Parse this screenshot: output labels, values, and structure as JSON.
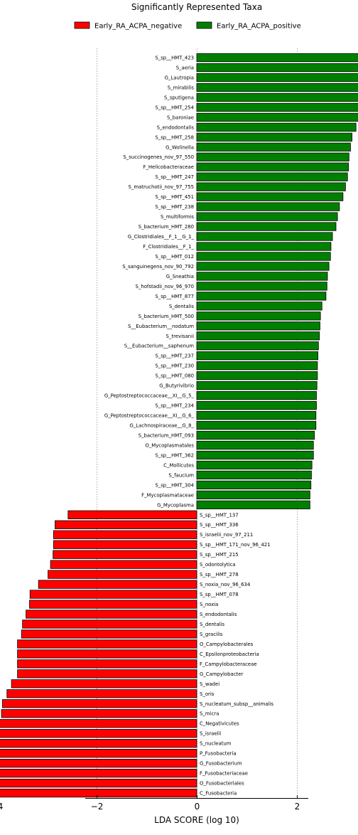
{
  "chart_data": {
    "type": "bar",
    "orientation": "horizontal",
    "title": "Significantly Represented Taxa",
    "xlabel": "LDA SCORE (log 10)",
    "ylabel": "",
    "xlim": [
      -4.5,
      4.3
    ],
    "xticks": [
      -4,
      -2,
      0,
      2,
      4
    ],
    "xtick_labels": [
      "−4",
      "−2",
      "0",
      "2",
      "4"
    ],
    "grid": "vertical dotted lines at x ticks",
    "legend_position": "top",
    "series": [
      {
        "name": "Early_RA_ACPA_negative",
        "color": "#ff0000"
      },
      {
        "name": "Early_RA_ACPA_positive",
        "color": "#008000"
      }
    ],
    "bars": [
      {
        "label": "S_sp__HMT_423",
        "value": 4.25,
        "group": 1
      },
      {
        "label": "S_aeria",
        "value": 4.12,
        "group": 1
      },
      {
        "label": "G_Lautropia",
        "value": 4.0,
        "group": 1
      },
      {
        "label": "S_mirabilis",
        "value": 3.99,
        "group": 1
      },
      {
        "label": "S_sputigena",
        "value": 3.98,
        "group": 1
      },
      {
        "label": "S_sp__HMT_254",
        "value": 3.33,
        "group": 1
      },
      {
        "label": "S_baroniae",
        "value": 3.23,
        "group": 1
      },
      {
        "label": "S_endodontalis",
        "value": 3.18,
        "group": 1
      },
      {
        "label": "S_sp__HMT_258",
        "value": 3.1,
        "group": 1
      },
      {
        "label": "G_Wolinella",
        "value": 3.07,
        "group": 1
      },
      {
        "label": "S_succinogenes_nov_97_550",
        "value": 3.04,
        "group": 1
      },
      {
        "label": "F_Helicobacteraceae",
        "value": 3.03,
        "group": 1
      },
      {
        "label": "S_sp__HMT_247",
        "value": 3.01,
        "group": 1
      },
      {
        "label": "S_matruchotii_nov_97_755",
        "value": 2.97,
        "group": 1
      },
      {
        "label": "S_sp__HMT_451",
        "value": 2.92,
        "group": 1
      },
      {
        "label": "S_sp__HMT_238",
        "value": 2.85,
        "group": 1
      },
      {
        "label": "S_multiformis",
        "value": 2.81,
        "group": 1
      },
      {
        "label": "S_bacterium_HMT_280",
        "value": 2.78,
        "group": 1
      },
      {
        "label": "G_Clostridiales__F_1__G_1_",
        "value": 2.71,
        "group": 1
      },
      {
        "label": "F_Clostridiales__F_1_",
        "value": 2.68,
        "group": 1
      },
      {
        "label": "S_sp__HMT_012",
        "value": 2.67,
        "group": 1
      },
      {
        "label": "S_sanguinegens_nov_90_792",
        "value": 2.64,
        "group": 1
      },
      {
        "label": "G_Sneathia",
        "value": 2.61,
        "group": 1
      },
      {
        "label": "S_hofstadii_nov_96_970",
        "value": 2.6,
        "group": 1
      },
      {
        "label": "S_sp__HMT_877",
        "value": 2.58,
        "group": 1
      },
      {
        "label": "S_dentalis",
        "value": 2.5,
        "group": 1
      },
      {
        "label": "S_bacterium_HMT_500",
        "value": 2.47,
        "group": 1
      },
      {
        "label": "S__Eubacterium__nodatum",
        "value": 2.46,
        "group": 1
      },
      {
        "label": "S_trevisanii",
        "value": 2.45,
        "group": 1
      },
      {
        "label": "S__Eubacterium__saphenum",
        "value": 2.43,
        "group": 1
      },
      {
        "label": "S_sp__HMT_237",
        "value": 2.42,
        "group": 1
      },
      {
        "label": "S_sp__HMT_230",
        "value": 2.41,
        "group": 1
      },
      {
        "label": "S_sp__HMT_080",
        "value": 2.41,
        "group": 1
      },
      {
        "label": "G_Butyrivibrio",
        "value": 2.4,
        "group": 1
      },
      {
        "label": "G_Peptostreptococcaceae__XI__G_5_",
        "value": 2.39,
        "group": 1
      },
      {
        "label": "S_sp__HMT_234",
        "value": 2.39,
        "group": 1
      },
      {
        "label": "G_Peptostreptococcaceae__XI__G_6_",
        "value": 2.38,
        "group": 1
      },
      {
        "label": "G_Lachnospiraceae__G_8_",
        "value": 2.38,
        "group": 1
      },
      {
        "label": "S_bacterium_HMT_093",
        "value": 2.35,
        "group": 1
      },
      {
        "label": "O_Mycoplasmatales",
        "value": 2.33,
        "group": 1
      },
      {
        "label": "S_sp__HMT_362",
        "value": 2.33,
        "group": 1
      },
      {
        "label": "C_Mollicutes",
        "value": 2.3,
        "group": 1
      },
      {
        "label": "S_faucium",
        "value": 2.29,
        "group": 1
      },
      {
        "label": "S_sp__HMT_304",
        "value": 2.28,
        "group": 1
      },
      {
        "label": "F_Mycoplasmataceae",
        "value": 2.26,
        "group": 1
      },
      {
        "label": "G_Mycoplasma",
        "value": 2.26,
        "group": 1
      },
      {
        "label": "S_sp__HMT_137",
        "value": -2.57,
        "group": 0
      },
      {
        "label": "S_sp__HMT_336",
        "value": -2.83,
        "group": 0
      },
      {
        "label": "S_israelii_nov_97_211",
        "value": -2.86,
        "group": 0
      },
      {
        "label": "S_sp__HMT_171_nov_96_421",
        "value": -2.86,
        "group": 0
      },
      {
        "label": "S_sp__HMT_215",
        "value": -2.87,
        "group": 0
      },
      {
        "label": "S_odontolytica",
        "value": -2.92,
        "group": 0
      },
      {
        "label": "S_sp__HMT_278",
        "value": -2.97,
        "group": 0
      },
      {
        "label": "S_noxia_nov_96_634",
        "value": -3.16,
        "group": 0
      },
      {
        "label": "S_sp__HMT_078",
        "value": -3.33,
        "group": 0
      },
      {
        "label": "S_noxia",
        "value": -3.34,
        "group": 0
      },
      {
        "label": "S_endodontalis",
        "value": -3.41,
        "group": 0
      },
      {
        "label": "S_dentalis",
        "value": -3.48,
        "group": 0
      },
      {
        "label": "S_gracilis",
        "value": -3.5,
        "group": 0
      },
      {
        "label": "O_Campylobacterales",
        "value": -3.58,
        "group": 0
      },
      {
        "label": "C_Epsilonproteobacteria",
        "value": -3.58,
        "group": 0
      },
      {
        "label": "F_Campylobacteraceae",
        "value": -3.58,
        "group": 0
      },
      {
        "label": "G_Campylobacter",
        "value": -3.58,
        "group": 0
      },
      {
        "label": "S_wadei",
        "value": -3.7,
        "group": 0
      },
      {
        "label": "S_oris",
        "value": -3.79,
        "group": 0
      },
      {
        "label": "S_nucleatum_subsp__animalis",
        "value": -3.88,
        "group": 0
      },
      {
        "label": "S_micra",
        "value": -3.9,
        "group": 0
      },
      {
        "label": "C_Negativicutes",
        "value": -3.95,
        "group": 0
      },
      {
        "label": "S_israelii",
        "value": -4.1,
        "group": 0
      },
      {
        "label": "S_nucleatum",
        "value": -4.27,
        "group": 0
      },
      {
        "label": "P_Fusobacteria",
        "value": -4.47,
        "group": 0
      },
      {
        "label": "G_Fusobacterium",
        "value": -4.47,
        "group": 0
      },
      {
        "label": "F_Fusobacteriaceae",
        "value": -4.47,
        "group": 0
      },
      {
        "label": "O_Fusobacteriales",
        "value": -4.47,
        "group": 0
      },
      {
        "label": "C_Fusobacteria",
        "value": -4.47,
        "group": 0
      }
    ]
  }
}
